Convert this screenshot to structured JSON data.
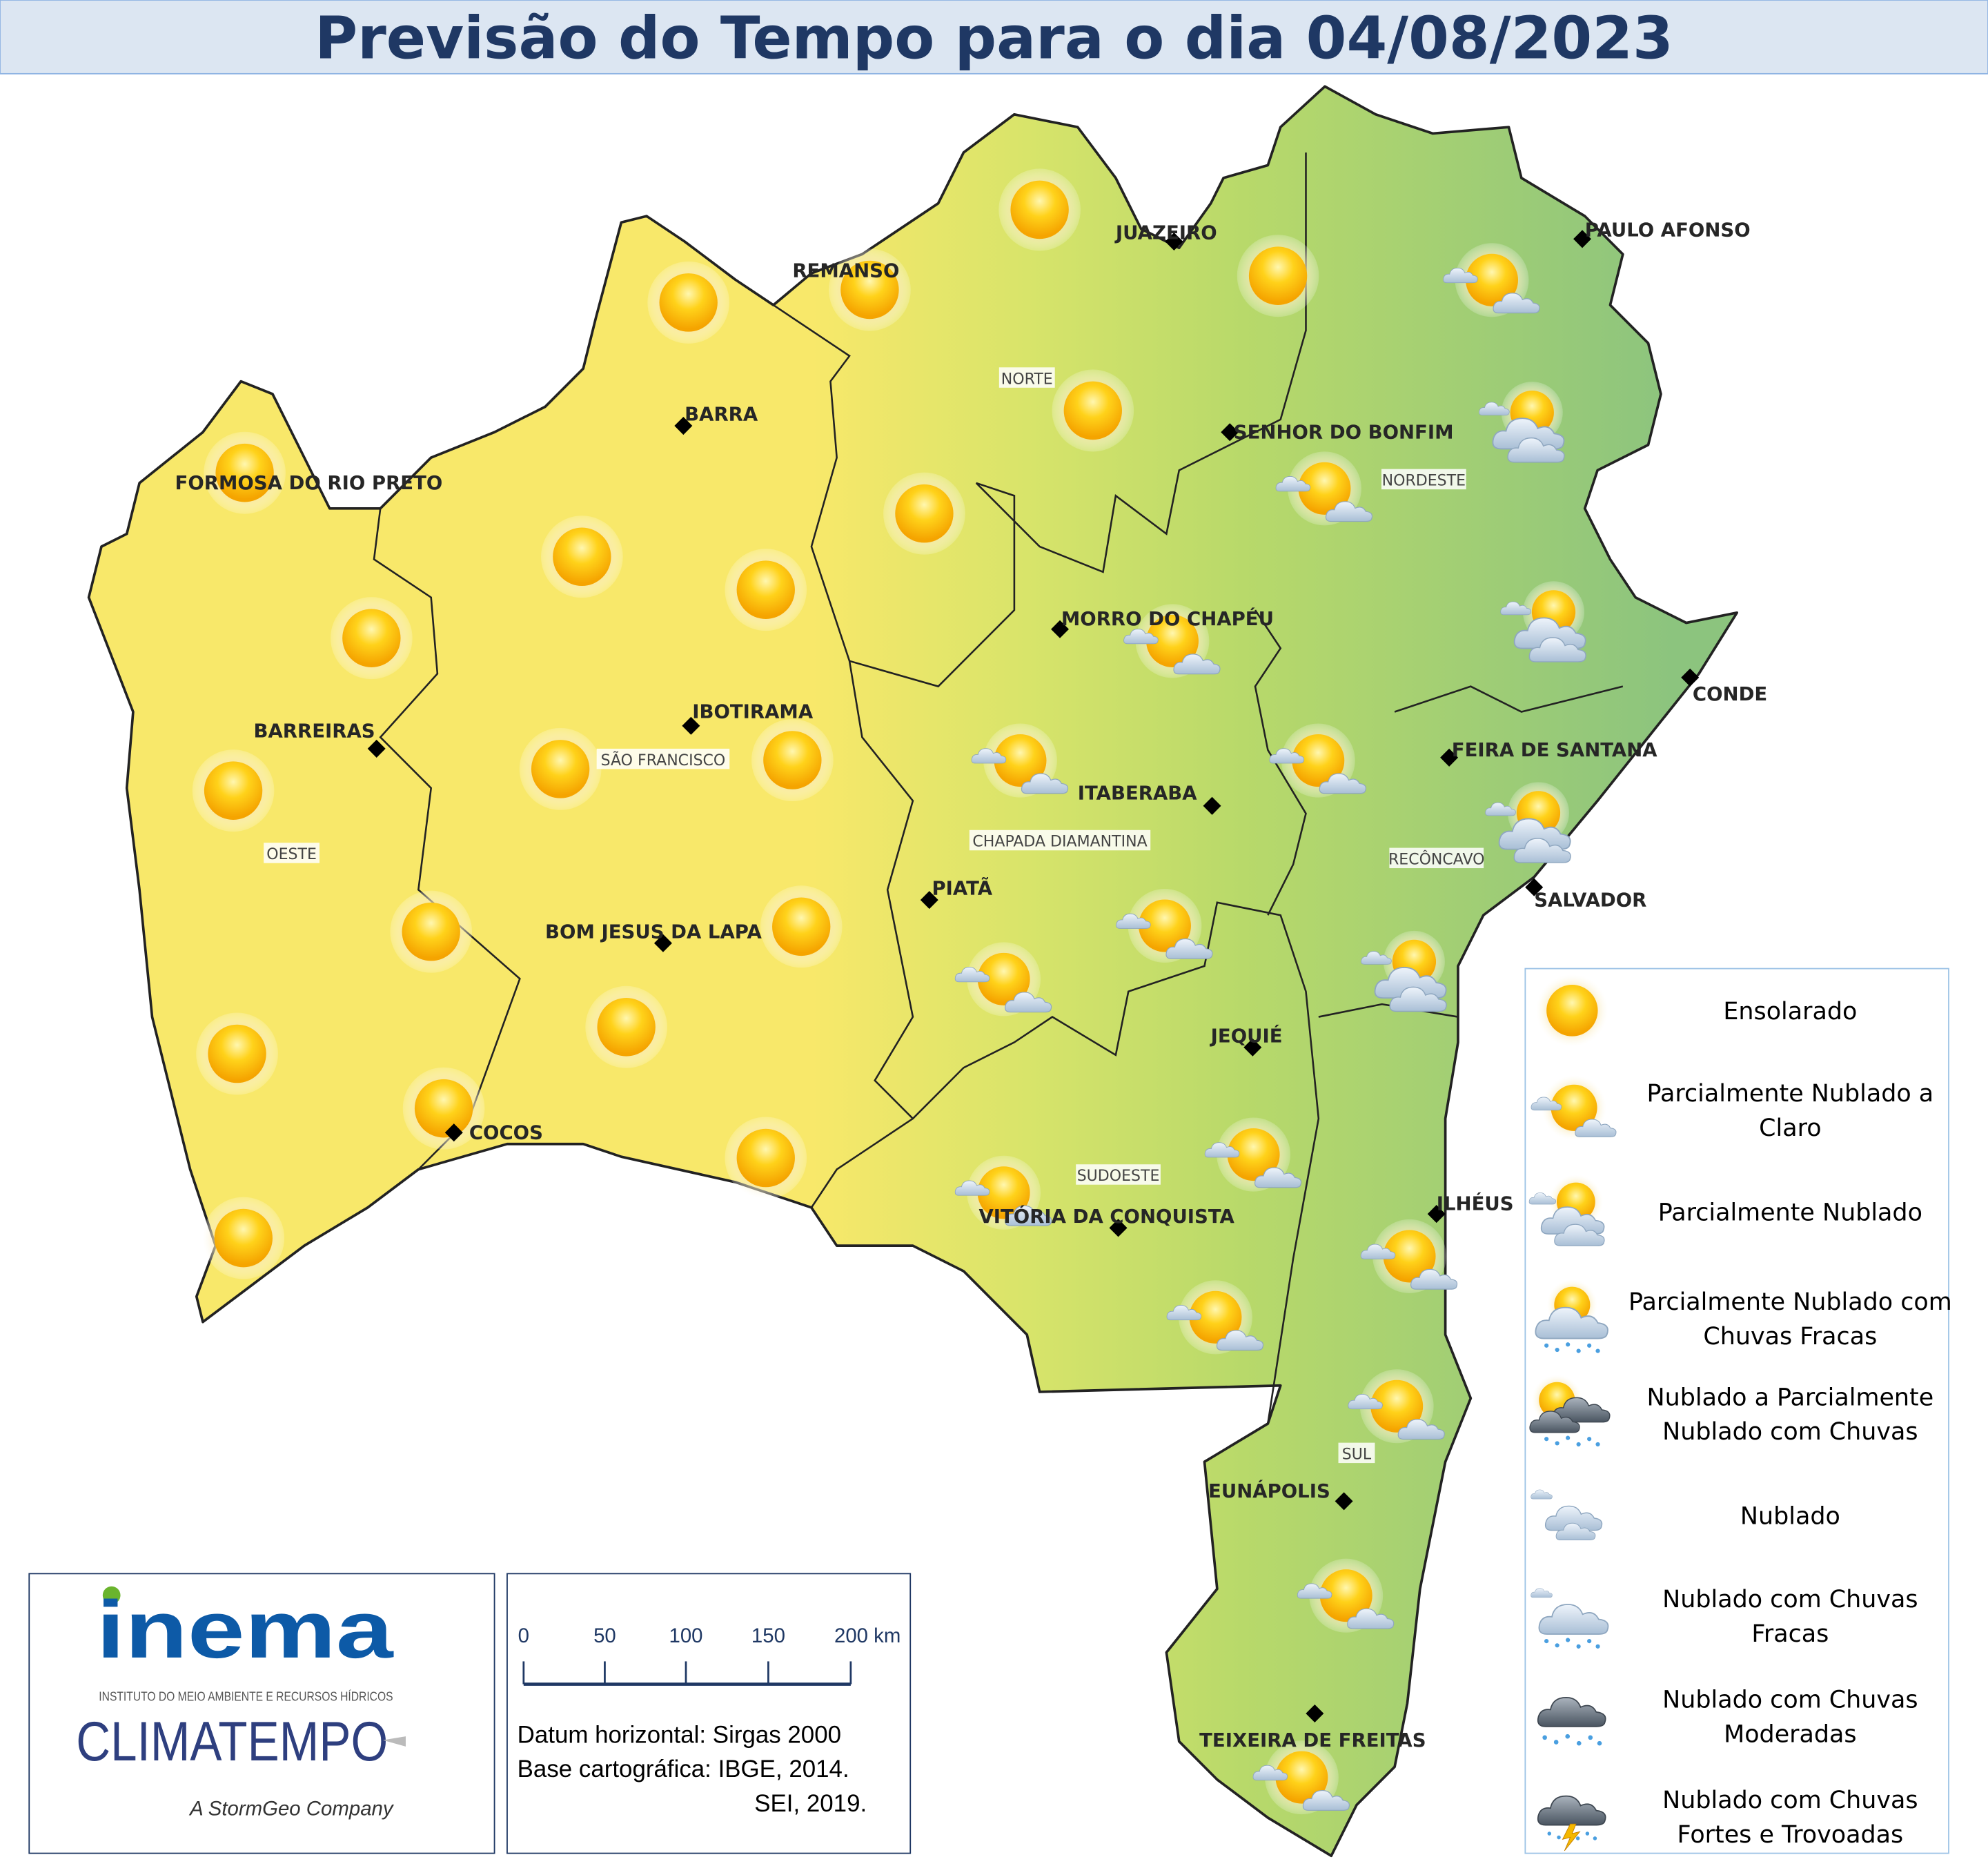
{
  "header": {
    "title": "Previsão do Tempo para o dia 04/08/2023"
  },
  "colors": {
    "title_bg": "#dce6f2",
    "title_text": "#1f3864",
    "dry_zone": "#f8e86a",
    "wet_zone": "#8ec87c",
    "inema_blue": "#0d5aa7",
    "inema_green": "#6ab42d",
    "climatempo": "#2e3f7f"
  },
  "cities": [
    "JUAZEIRO",
    "PAULO AFONSO",
    "REMANSO",
    "BARRA",
    "SENHOR DO BONFIM",
    "FORMOSA DO RIO PRETO",
    "MORRO DO CHAPÉU",
    "CONDE",
    "IBOTIRAMA",
    "BARREIRAS",
    "FEIRA DE SANTANA",
    "ITABERABA",
    "PIATÃ",
    "SALVADOR",
    "BOM JESUS DA LAPA",
    "JEQUIÉ",
    "COCOS",
    "ILHÉUS",
    "VITÓRIA DA CONQUISTA",
    "EUNÁPOLIS",
    "TEIXEIRA DE FREITAS"
  ],
  "regions": [
    "NORTE",
    "NORDESTE",
    "SÃO FRANCISCO",
    "CHAPADA DIAMANTINA",
    "OESTE",
    "RECÔNCAVO",
    "SUDOESTE",
    "SUL"
  ],
  "map_icons": [
    "sun",
    "sun",
    "sun",
    "sun",
    "sun",
    "sun",
    "sun",
    "sun",
    "sun",
    "sun",
    "sun",
    "sun",
    "sun",
    "sun",
    "sun",
    "sun",
    "sun",
    "sun",
    "sun",
    "sun",
    "pc",
    "pc",
    "pc",
    "pc",
    "pc",
    "pc",
    "pc",
    "pc",
    "pc",
    "pc",
    "pc",
    "pc",
    "pc",
    "pc",
    "pn",
    "pn",
    "pn",
    "pn"
  ],
  "legend": [
    {
      "icon": "sun",
      "lines": [
        "Ensolarado"
      ]
    },
    {
      "icon": "pc",
      "lines": [
        "Parcialmente Nublado a",
        "Claro"
      ]
    },
    {
      "icon": "pn",
      "lines": [
        "Parcialmente Nublado"
      ]
    },
    {
      "icon": "pn-rain",
      "lines": [
        "Parcialmente Nublado com",
        "Chuvas Fracas"
      ]
    },
    {
      "icon": "dark-pn-rain",
      "lines": [
        "Nublado a Parcialmente",
        "Nublado com Chuvas"
      ]
    },
    {
      "icon": "cloud",
      "lines": [
        "Nublado"
      ]
    },
    {
      "icon": "cloud-rain",
      "lines": [
        "Nublado com Chuvas",
        "Fracas"
      ]
    },
    {
      "icon": "dark-rain",
      "lines": [
        "Nublado com Chuvas",
        "Moderadas"
      ]
    },
    {
      "icon": "storm",
      "lines": [
        "Nublado com Chuvas",
        "Fortes e Trovoadas"
      ]
    }
  ],
  "logos": {
    "inema": "inema",
    "inema_sub": "INSTITUTO DO MEIO AMBIENTE E RECURSOS HÍDRICOS",
    "climatempo": "CLIMATEMPO",
    "climatempo_sub": "A StormGeo Company"
  },
  "scale": {
    "ticks": [
      "0",
      "50",
      "100",
      "150",
      "200 km"
    ]
  },
  "notes": {
    "line1": "Datum horizontal: Sirgas 2000",
    "line2": "Base cartográfica: IBGE, 2014.",
    "line3": "SEI, 2019."
  }
}
